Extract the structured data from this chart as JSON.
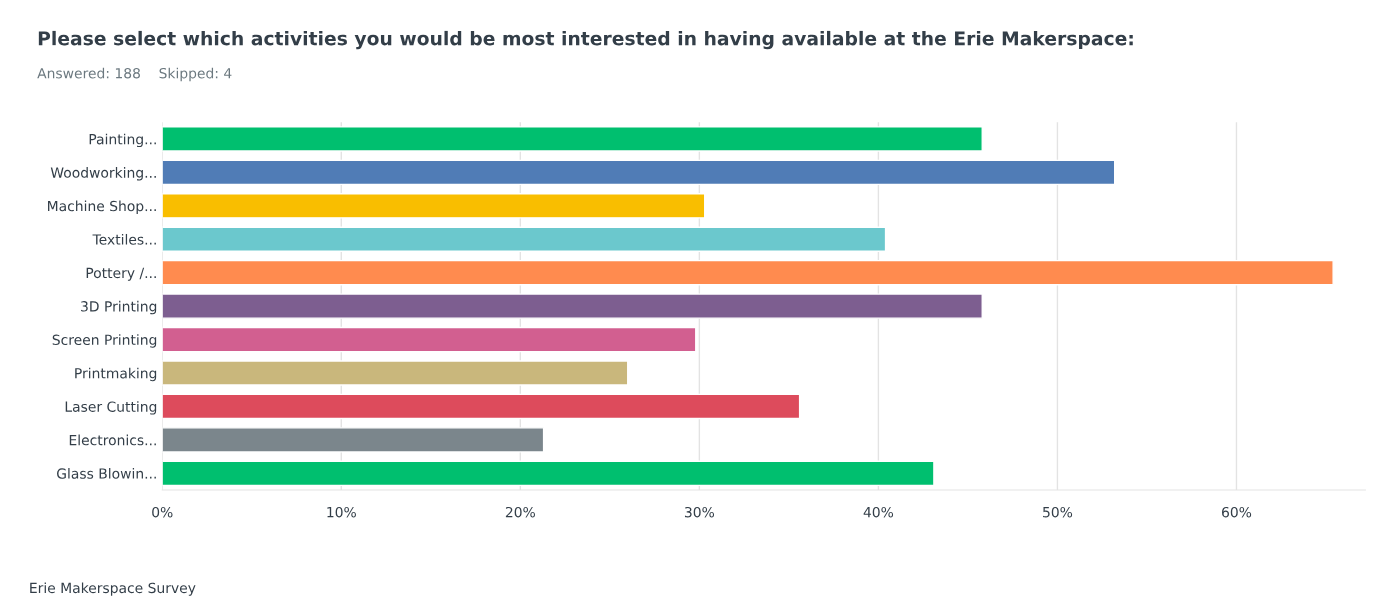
{
  "chart_data": {
    "type": "bar",
    "orientation": "horizontal",
    "title": "Please select which activities you would be most interested in having available at the Erie Makerspace:",
    "subtitle": "Answered: 188    Skipped: 4",
    "categories": [
      "Painting...",
      "Woodworking...",
      "Machine Shop...",
      "Textiles...",
      "Pottery /...",
      "3D Printing",
      "Screen Printing",
      "Printmaking",
      "Laser Cutting",
      "Electronics...",
      "Glass Blowin..."
    ],
    "values": [
      45.8,
      53.2,
      30.3,
      40.4,
      65.4,
      45.8,
      29.8,
      26.0,
      35.6,
      21.3,
      43.1
    ],
    "colors": [
      "#00bf6f",
      "#507cb6",
      "#f9be00",
      "#6bc8cd",
      "#ff8b4f",
      "#7d5e90",
      "#d25f90",
      "#c9b77c",
      "#dd4b5c",
      "#7b868c",
      "#00bf6f"
    ],
    "xlim": [
      0,
      67.2
    ],
    "xticks": [
      {
        "value": 0,
        "label": "0%"
      },
      {
        "value": 10,
        "label": "10%"
      },
      {
        "value": 20,
        "label": "20%"
      },
      {
        "value": 30,
        "label": "30%"
      },
      {
        "value": 40,
        "label": "40%"
      },
      {
        "value": 50,
        "label": "50%"
      },
      {
        "value": 60,
        "label": "60%"
      }
    ],
    "grid": "x",
    "annotations": [
      "Erie Makerspace Survey"
    ]
  }
}
